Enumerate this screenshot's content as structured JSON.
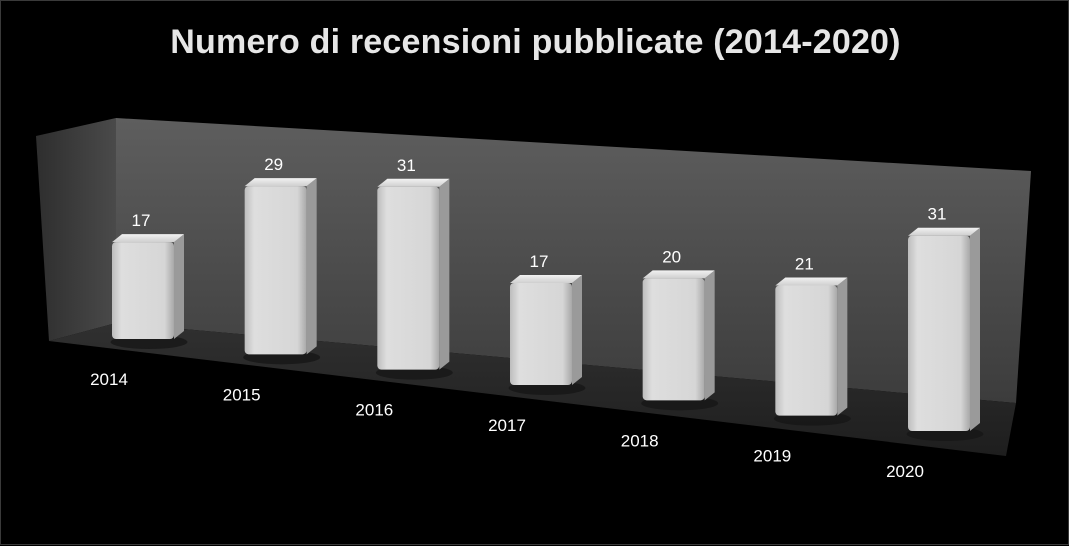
{
  "chart_data": {
    "type": "bar",
    "title": "Numero di recensioni pubblicate (2014-2020)",
    "categories": [
      "2014",
      "2015",
      "2016",
      "2017",
      "2018",
      "2019",
      "2020"
    ],
    "values": [
      17,
      29,
      31,
      17,
      20,
      21,
      31
    ],
    "data_labels": [
      "17",
      "29",
      "31",
      "17",
      "20",
      "21",
      "31"
    ],
    "xlabel": "",
    "ylabel": "",
    "ylim": [
      0,
      35
    ],
    "grid": false,
    "legend": "none",
    "colors": {
      "background": "#000000",
      "back_wall": "#555555",
      "floor": "#2a2a2a",
      "bar_front": "#d4d4d4",
      "bar_side": "#9a9a9a",
      "bar_top": "#ececec",
      "text": "#ffffff"
    }
  }
}
